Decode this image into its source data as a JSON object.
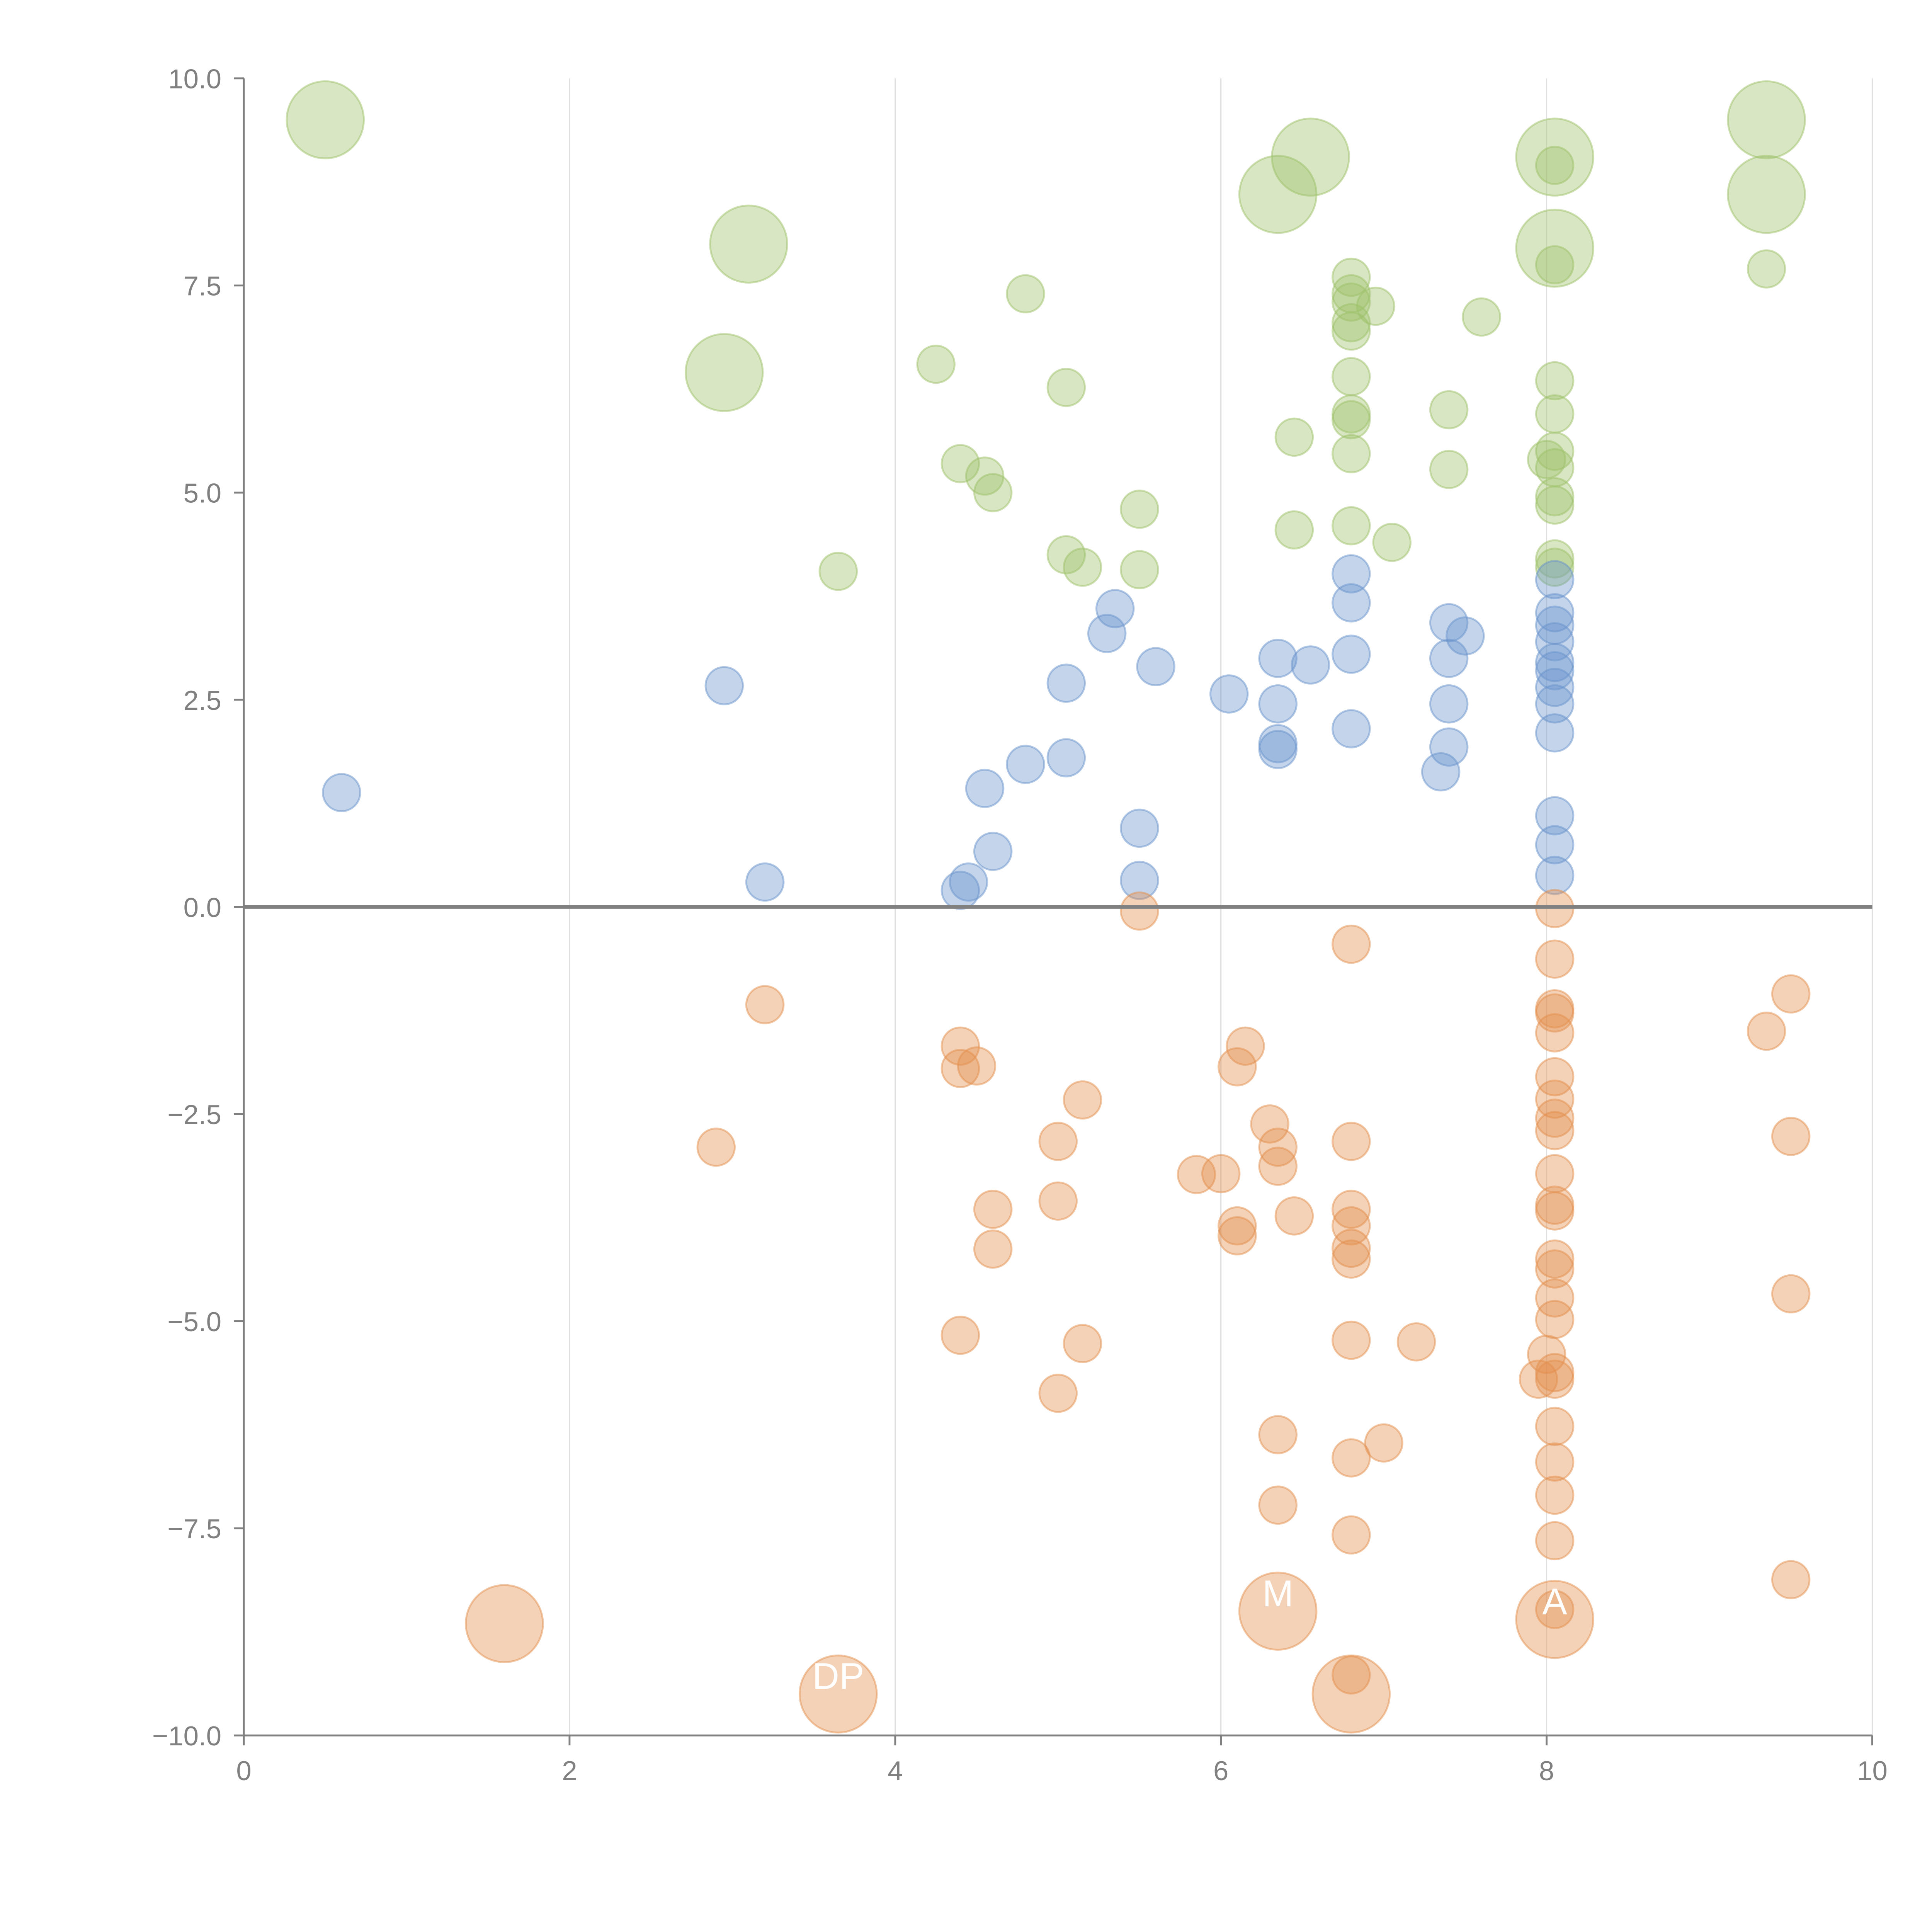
{
  "chart_data": {
    "type": "scatter",
    "title": "",
    "xlabel": "",
    "ylabel": "",
    "xlim": [
      0,
      10
    ],
    "ylim": [
      -10,
      10
    ],
    "x_ticks": [
      "0",
      "2",
      "4",
      "6",
      "8",
      "10"
    ],
    "y_ticks": [
      "10.0",
      "7.5",
      "5.0",
      "2.5",
      "0.0",
      "−2.5",
      "−5.0",
      "−7.5",
      "−10.0"
    ],
    "grid": "vertical",
    "zero_line": true,
    "colors": {
      "green": "#9dc16a",
      "blue": "#6a93cc",
      "orange": "#e38f4e",
      "axis": "#808080",
      "grid": "#e0e0e0"
    },
    "series": [
      {
        "color_key": "green",
        "points": [
          [
            0.5,
            9.5,
            1
          ],
          [
            3.1,
            8.0,
            1
          ],
          [
            2.95,
            6.45,
            1
          ],
          [
            6.35,
            8.6,
            1
          ],
          [
            6.55,
            9.05,
            1
          ],
          [
            8.05,
            9.05,
            1
          ],
          [
            8.05,
            7.95,
            1
          ],
          [
            9.35,
            9.5,
            1
          ],
          [
            9.35,
            8.6,
            1
          ],
          [
            4.8,
            7.4,
            0
          ],
          [
            4.25,
            6.55,
            0
          ],
          [
            5.05,
            6.27,
            0
          ],
          [
            4.4,
            5.35,
            0
          ],
          [
            4.55,
            5.2,
            0
          ],
          [
            4.6,
            5.0,
            0
          ],
          [
            5.5,
            4.8,
            0
          ],
          [
            3.65,
            4.05,
            0
          ],
          [
            5.05,
            4.25,
            0
          ],
          [
            5.15,
            4.1,
            0
          ],
          [
            5.5,
            4.07,
            0
          ],
          [
            6.45,
            5.67,
            0
          ],
          [
            6.45,
            4.55,
            0
          ],
          [
            6.8,
            7.6,
            0
          ],
          [
            6.8,
            7.4,
            0
          ],
          [
            6.8,
            7.3,
            0
          ],
          [
            6.8,
            7.05,
            0
          ],
          [
            6.8,
            6.95,
            0
          ],
          [
            6.95,
            7.25,
            0
          ],
          [
            6.8,
            6.4,
            0
          ],
          [
            6.8,
            5.95,
            0
          ],
          [
            6.8,
            5.88,
            0
          ],
          [
            6.8,
            5.47,
            0
          ],
          [
            6.8,
            4.6,
            0
          ],
          [
            7.05,
            4.4,
            0
          ],
          [
            7.6,
            7.12,
            0
          ],
          [
            7.4,
            6.0,
            0
          ],
          [
            7.4,
            5.28,
            0
          ],
          [
            8.05,
            8.95,
            0
          ],
          [
            8.05,
            7.75,
            0
          ],
          [
            8.05,
            6.35,
            0
          ],
          [
            8.05,
            5.95,
            0
          ],
          [
            8.05,
            5.5,
            0
          ],
          [
            8.0,
            5.4,
            0
          ],
          [
            8.05,
            5.3,
            0
          ],
          [
            8.05,
            4.95,
            0
          ],
          [
            8.05,
            4.85,
            0
          ],
          [
            8.05,
            4.2,
            0
          ],
          [
            8.05,
            4.1,
            0
          ],
          [
            9.35,
            7.7,
            0
          ]
        ]
      },
      {
        "color_key": "blue",
        "points": [
          [
            0.6,
            1.38,
            0
          ],
          [
            2.95,
            2.67,
            0
          ],
          [
            3.2,
            0.3,
            0
          ],
          [
            4.45,
            0.3,
            0
          ],
          [
            4.4,
            0.2,
            0
          ],
          [
            4.6,
            0.67,
            0
          ],
          [
            4.55,
            1.43,
            0
          ],
          [
            4.8,
            1.72,
            0
          ],
          [
            5.05,
            1.8,
            0
          ],
          [
            5.05,
            2.7,
            0
          ],
          [
            5.3,
            3.3,
            0
          ],
          [
            5.35,
            3.6,
            0
          ],
          [
            5.6,
            2.9,
            0
          ],
          [
            5.5,
            0.95,
            0
          ],
          [
            5.5,
            0.32,
            0
          ],
          [
            6.05,
            2.57,
            0
          ],
          [
            6.35,
            3.0,
            0
          ],
          [
            6.35,
            2.45,
            0
          ],
          [
            6.35,
            1.97,
            0
          ],
          [
            6.35,
            1.9,
            0
          ],
          [
            6.55,
            2.92,
            0
          ],
          [
            6.8,
            4.02,
            0
          ],
          [
            6.8,
            3.67,
            0
          ],
          [
            6.8,
            3.05,
            0
          ],
          [
            6.8,
            2.15,
            0
          ],
          [
            7.4,
            3.43,
            0
          ],
          [
            7.5,
            3.27,
            0
          ],
          [
            7.4,
            3.0,
            0
          ],
          [
            7.4,
            2.45,
            0
          ],
          [
            7.4,
            1.93,
            0
          ],
          [
            7.35,
            1.63,
            0
          ],
          [
            8.05,
            3.95,
            0
          ],
          [
            8.05,
            3.55,
            0
          ],
          [
            8.05,
            3.4,
            0
          ],
          [
            8.05,
            3.2,
            0
          ],
          [
            8.05,
            2.95,
            0
          ],
          [
            8.05,
            2.85,
            0
          ],
          [
            8.05,
            2.65,
            0
          ],
          [
            8.05,
            2.45,
            0
          ],
          [
            8.05,
            2.1,
            0
          ],
          [
            8.05,
            1.1,
            0
          ],
          [
            8.05,
            0.75,
            0
          ],
          [
            8.05,
            0.38,
            0
          ]
        ]
      },
      {
        "color_key": "orange",
        "points": [
          [
            1.6,
            -8.65,
            1
          ],
          [
            3.65,
            -9.5,
            1
          ],
          [
            6.35,
            -8.5,
            1
          ],
          [
            6.8,
            -9.5,
            1
          ],
          [
            8.05,
            -8.6,
            1
          ],
          [
            5.5,
            -0.05,
            0
          ],
          [
            3.2,
            -1.18,
            0
          ],
          [
            2.9,
            -2.9,
            0
          ],
          [
            4.4,
            -1.68,
            0
          ],
          [
            4.4,
            -1.95,
            0
          ],
          [
            4.5,
            -1.92,
            0
          ],
          [
            5.15,
            -2.33,
            0
          ],
          [
            5.0,
            -2.83,
            0
          ],
          [
            4.6,
            -3.65,
            0
          ],
          [
            4.6,
            -4.13,
            0
          ],
          [
            5.0,
            -3.55,
            0
          ],
          [
            4.4,
            -5.17,
            0
          ],
          [
            5.15,
            -5.27,
            0
          ],
          [
            5.0,
            -5.87,
            0
          ],
          [
            5.85,
            -3.23,
            0
          ],
          [
            6.0,
            -3.22,
            0
          ],
          [
            6.15,
            -1.68,
            0
          ],
          [
            6.1,
            -1.93,
            0
          ],
          [
            6.3,
            -2.62,
            0
          ],
          [
            6.35,
            -2.9,
            0
          ],
          [
            6.35,
            -3.13,
            0
          ],
          [
            6.1,
            -3.85,
            0
          ],
          [
            6.1,
            -3.97,
            0
          ],
          [
            6.45,
            -3.73,
            0
          ],
          [
            6.35,
            -6.37,
            0
          ],
          [
            6.35,
            -7.22,
            0
          ],
          [
            6.8,
            -0.45,
            0
          ],
          [
            6.8,
            -2.83,
            0
          ],
          [
            6.8,
            -3.65,
            0
          ],
          [
            6.8,
            -3.85,
            0
          ],
          [
            6.8,
            -4.12,
            0
          ],
          [
            6.8,
            -4.25,
            0
          ],
          [
            6.8,
            -5.23,
            0
          ],
          [
            6.8,
            -6.65,
            0
          ],
          [
            6.8,
            -7.58,
            0
          ],
          [
            6.8,
            -9.27,
            0
          ],
          [
            7.0,
            -6.47,
            0
          ],
          [
            7.2,
            -5.25,
            0
          ],
          [
            8.05,
            -0.02,
            0
          ],
          [
            8.05,
            -0.63,
            0
          ],
          [
            8.05,
            -1.23,
            0
          ],
          [
            8.05,
            -1.28,
            0
          ],
          [
            8.05,
            -1.52,
            0
          ],
          [
            8.05,
            -2.05,
            0
          ],
          [
            8.05,
            -2.32,
            0
          ],
          [
            8.05,
            -2.55,
            0
          ],
          [
            8.05,
            -2.7,
            0
          ],
          [
            8.05,
            -3.22,
            0
          ],
          [
            8.05,
            -3.6,
            0
          ],
          [
            8.05,
            -3.67,
            0
          ],
          [
            8.05,
            -4.25,
            0
          ],
          [
            8.05,
            -4.37,
            0
          ],
          [
            8.05,
            -4.72,
            0
          ],
          [
            8.05,
            -4.98,
            0
          ],
          [
            8.0,
            -5.4,
            0
          ],
          [
            7.95,
            -5.7,
            0
          ],
          [
            8.05,
            -5.62,
            0
          ],
          [
            8.05,
            -5.7,
            0
          ],
          [
            8.05,
            -6.27,
            0
          ],
          [
            8.05,
            -6.7,
            0
          ],
          [
            8.05,
            -7.1,
            0
          ],
          [
            8.05,
            -7.65,
            0
          ],
          [
            8.05,
            -8.48,
            0
          ],
          [
            9.35,
            -1.5,
            0
          ],
          [
            9.5,
            -1.05,
            0
          ],
          [
            9.5,
            -2.77,
            0
          ],
          [
            9.5,
            -4.67,
            0
          ],
          [
            9.5,
            -8.12,
            0
          ]
        ]
      }
    ],
    "labels": [
      {
        "text": "DP",
        "x": 3.65,
        "y": -9.5,
        "series": 2,
        "point": 1
      },
      {
        "text": "M",
        "x": 6.35,
        "y": -8.5,
        "series": 2,
        "point": 2
      },
      {
        "text": "A",
        "x": 8.05,
        "y": -8.6,
        "series": 2,
        "point": 4
      }
    ]
  }
}
